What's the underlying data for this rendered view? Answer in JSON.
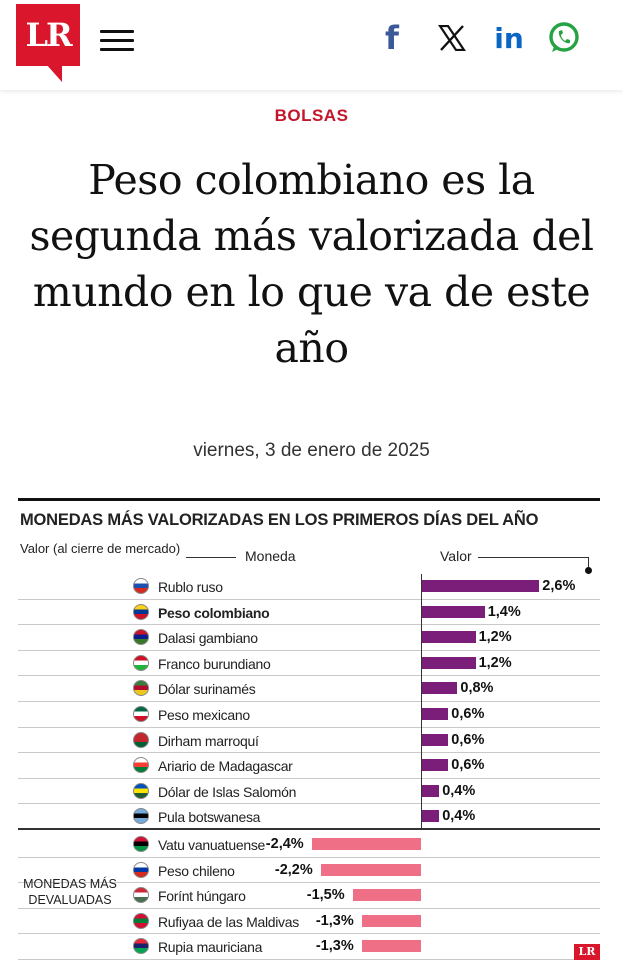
{
  "header": {
    "logo_text": "LR",
    "brand_color": "#d9162b",
    "social": {
      "facebook": "f",
      "linkedin": "in"
    }
  },
  "article": {
    "section": "BOLSAS",
    "headline": "Peso colombiano es la segunda más valorizada del mundo en lo que va de este año",
    "date": "viernes, 3 de enero de 2025"
  },
  "infographic": {
    "title": "MONEDAS MÁS VALORIZADAS EN LOS PRIMEROS DÍAS DEL AÑO",
    "legend_left": "Valor (al cierre de mercado)",
    "col_currency": "Moneda",
    "col_value": "Valor",
    "devalued_label_1": "MONEDAS MÁS",
    "devalued_label_2": "DEVALUADAS",
    "footer_logo": "LR",
    "positive_color": "#7b1e7a",
    "negative_color": "#ee6f86"
  },
  "chart_data": {
    "type": "bar",
    "title": "MONEDAS MÁS VALORIZADAS EN LOS PRIMEROS DÍAS DEL AÑO",
    "categories": [
      "Rublo ruso",
      "Peso colombiano",
      "Dalasi gambiano",
      "Franco burundiano",
      "Dólar surinamés",
      "Peso mexicano",
      "Dirham marroquí",
      "Ariario de Madagascar",
      "Dólar de Islas Salomón",
      "Pula botswanesa",
      "Vatu vanuatuense",
      "Peso chileno",
      "Forínt húngaro",
      "Rufiyaa de las Maldivas",
      "Rupia mauriciana"
    ],
    "values": [
      2.6,
      1.4,
      1.2,
      1.2,
      0.8,
      0.6,
      0.6,
      0.6,
      0.4,
      0.4,
      -2.4,
      -2.2,
      -1.5,
      -1.3,
      -1.3
    ],
    "labels": [
      "2,6%",
      "1,4%",
      "1,2%",
      "1,2%",
      "0,8%",
      "0,6%",
      "0,6%",
      "0,6%",
      "0,4%",
      "0,4%",
      "-2,4%",
      "-2,2%",
      "-1,5%",
      "-1,3%",
      "-1,3%"
    ],
    "highlight": "Peso colombiano"
  }
}
